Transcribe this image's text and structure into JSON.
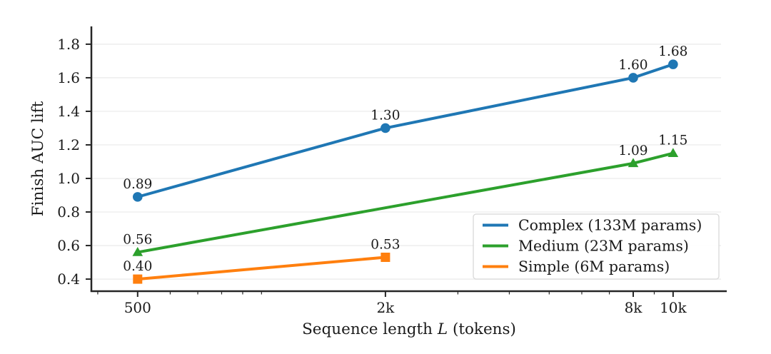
{
  "chart_data": {
    "type": "line",
    "title": "",
    "xlabel": {
      "prefix": "Sequence length ",
      "var": "L",
      "suffix": " (tokens)"
    },
    "ylabel": "Finish AUC lift",
    "x_scale": "log",
    "xlim": [
      386,
      13500
    ],
    "ylim": [
      0.328,
      1.906
    ],
    "grid": "horizontal",
    "legend_position": "lower right",
    "x_ticks": [
      {
        "value": 500,
        "label": "500"
      },
      {
        "value": 2000,
        "label": "2k"
      },
      {
        "value": 8000,
        "label": "8k"
      },
      {
        "value": 10000,
        "label": "10k"
      }
    ],
    "x_minor_ticks": [
      400,
      600,
      700,
      800,
      900,
      1000,
      3000,
      4000,
      5000,
      6000,
      7000,
      9000
    ],
    "y_ticks": [
      0.4,
      0.6,
      0.8,
      1.0,
      1.2,
      1.4,
      1.6,
      1.8
    ],
    "y_tick_labels": [
      "0.4",
      "0.6",
      "0.8",
      "1.0",
      "1.2",
      "1.4",
      "1.6",
      "1.8"
    ],
    "series": [
      {
        "name": "Complex (133M params)",
        "color": "#1f77b4",
        "marker": "circle",
        "x": [
          500,
          2000,
          8000,
          10000
        ],
        "y": [
          0.89,
          1.3,
          1.6,
          1.68
        ],
        "labels": [
          "0.89",
          "1.30",
          "1.60",
          "1.68"
        ]
      },
      {
        "name": "Medium (23M params)",
        "color": "#2ca02c",
        "marker": "triangle",
        "x": [
          500,
          8000,
          10000
        ],
        "y": [
          0.56,
          1.09,
          1.15
        ],
        "labels": [
          "0.56",
          "1.09",
          "1.15"
        ]
      },
      {
        "name": "Simple (6M params)",
        "color": "#ff7f0e",
        "marker": "square",
        "x": [
          500,
          2000
        ],
        "y": [
          0.4,
          0.53
        ],
        "labels": [
          "0.40",
          "0.53"
        ]
      }
    ],
    "colors": {
      "spine": "#262626",
      "text": "#1a1a1a",
      "grid": "#ececec",
      "legend_border": "#d8d8d8",
      "background": "#ffffff"
    }
  }
}
